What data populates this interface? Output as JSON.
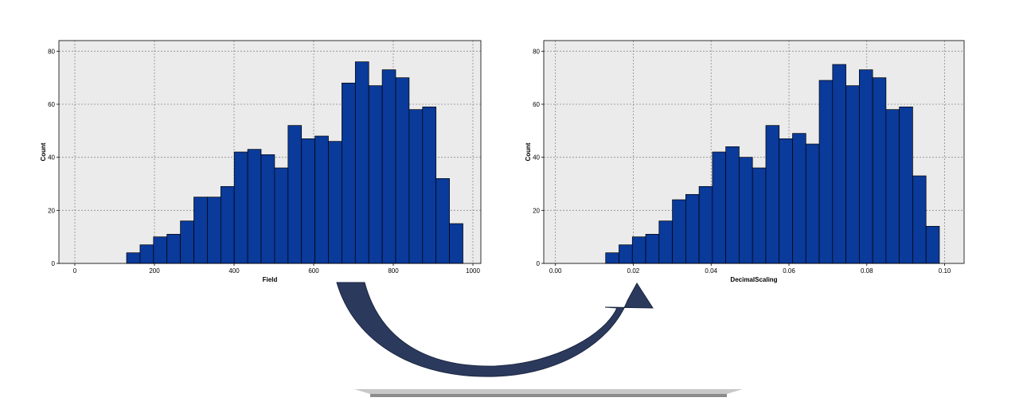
{
  "colors": {
    "bar_fill": "#0a3a9a",
    "bar_stroke": "#000000",
    "plot_bg": "#ebebeb",
    "grid": "#8c8c8c",
    "arrow": "#2b3a5c",
    "base_platform": "#9a9a9a"
  },
  "decorations": {
    "transform_arrow": "curved-arrow-icon",
    "base_platform": "gray-platform-shape"
  },
  "chart_data": [
    {
      "type": "bar",
      "subtype": "histogram",
      "xlabel": "Field",
      "ylabel": "Count",
      "xlim": [
        -40,
        1020
      ],
      "ylim": [
        0,
        84
      ],
      "xticks": [
        0,
        200,
        400,
        600,
        800,
        1000
      ],
      "xtick_labels": [
        "0",
        "200",
        "400",
        "600",
        "800",
        "1000"
      ],
      "yticks": [
        0,
        20,
        40,
        60,
        80
      ],
      "ytick_labels": [
        "0",
        "20",
        "40",
        "60",
        "80"
      ],
      "grid": true,
      "bin_start": 130,
      "bin_width": 33.8,
      "values": [
        4,
        7,
        10,
        11,
        16,
        25,
        25,
        29,
        42,
        43,
        41,
        36,
        52,
        47,
        48,
        46,
        68,
        76,
        67,
        73,
        70,
        58,
        59,
        32,
        15
      ]
    },
    {
      "type": "bar",
      "subtype": "histogram",
      "xlabel": "DecimalScaling",
      "ylabel": "Count",
      "xlim": [
        -0.003,
        0.105
      ],
      "ylim": [
        0,
        84
      ],
      "xticks": [
        0.0,
        0.02,
        0.04,
        0.06,
        0.08,
        0.1
      ],
      "xtick_labels": [
        "0.00",
        "0.02",
        "0.04",
        "0.06",
        "0.08",
        "0.10"
      ],
      "yticks": [
        0,
        20,
        40,
        60,
        80
      ],
      "ytick_labels": [
        "0",
        "20",
        "40",
        "60",
        "80"
      ],
      "grid": true,
      "bin_start": 0.0129,
      "bin_width": 0.00343,
      "values": [
        4,
        7,
        10,
        11,
        16,
        24,
        26,
        29,
        42,
        44,
        40,
        36,
        52,
        47,
        49,
        45,
        69,
        75,
        67,
        73,
        70,
        58,
        59,
        33,
        14
      ]
    }
  ]
}
